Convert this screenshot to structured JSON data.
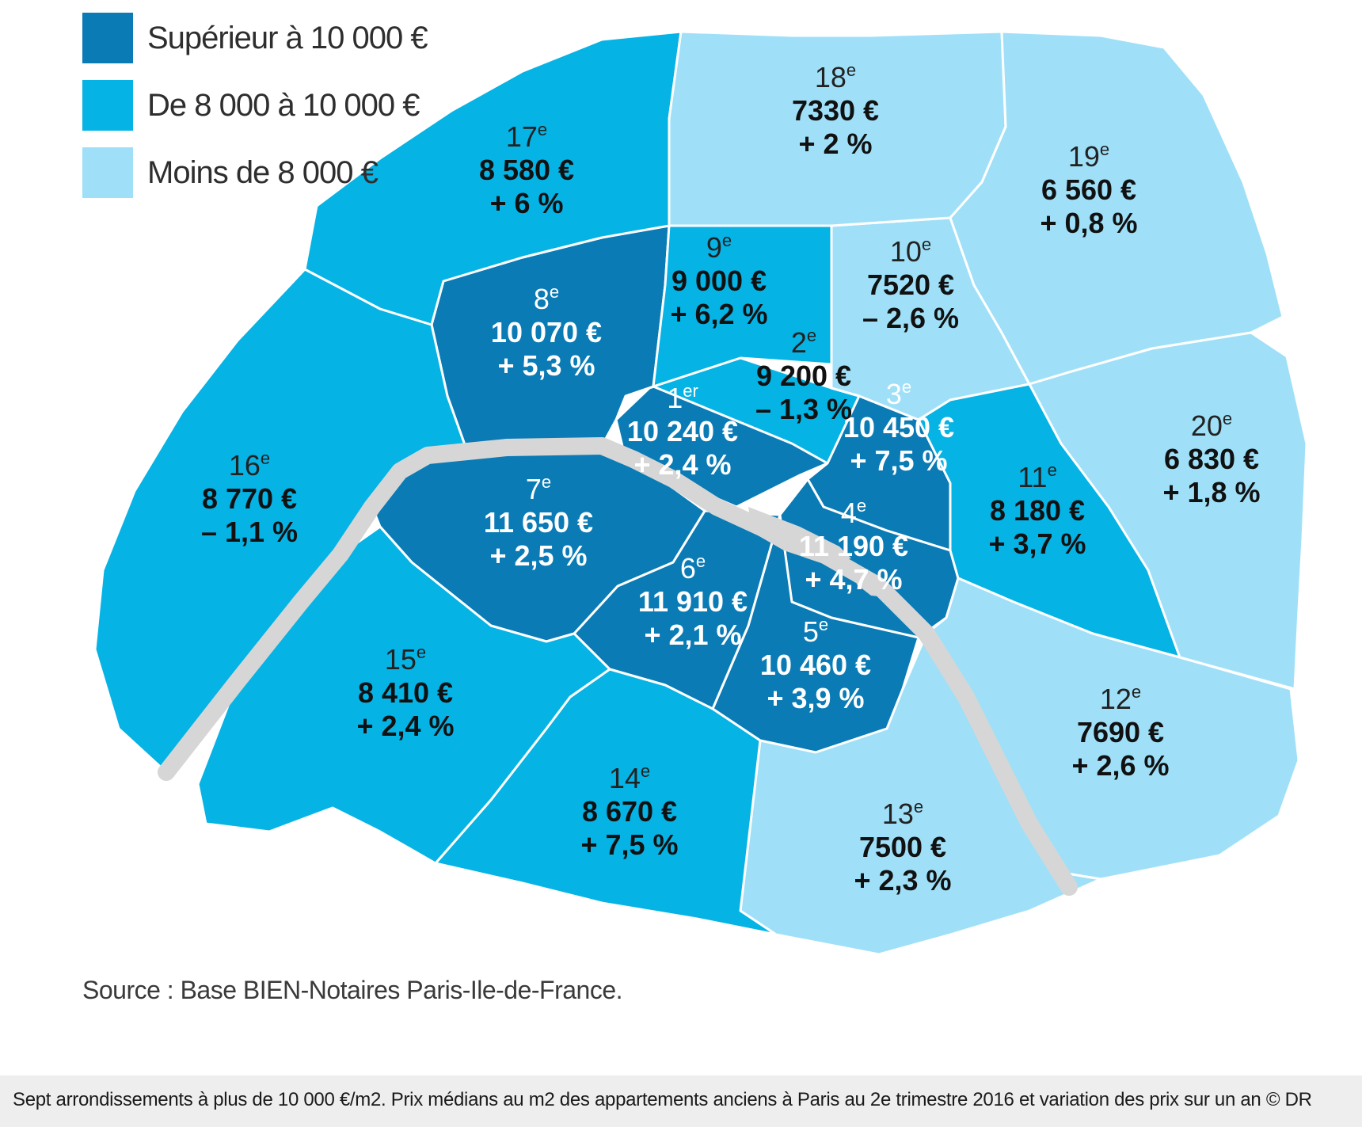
{
  "legend": {
    "items": [
      {
        "label": "Supérieur à 10 000 €",
        "color": "#0a7bb5"
      },
      {
        "label": "De 8 000 à 10 000 €",
        "color": "#05b3e5"
      },
      {
        "label": "Moins de 8 000 €",
        "color": "#9fe0f8"
      }
    ]
  },
  "arrondissements": [
    {
      "num": "1",
      "sup": "er",
      "price": "10 240 €",
      "change": "+ 2,4 %",
      "tier": 0
    },
    {
      "num": "2",
      "sup": "e",
      "price": "9 200 €",
      "change": "– 1,3 %",
      "tier": 1
    },
    {
      "num": "3",
      "sup": "e",
      "price": "10 450 €",
      "change": "+ 7,5 %",
      "tier": 0
    },
    {
      "num": "4",
      "sup": "e",
      "price": "11 190 €",
      "change": "+ 4,7 %",
      "tier": 0
    },
    {
      "num": "5",
      "sup": "e",
      "price": "10 460 €",
      "change": "+ 3,9 %",
      "tier": 0
    },
    {
      "num": "6",
      "sup": "e",
      "price": "11 910 €",
      "change": "+ 2,1 %",
      "tier": 0
    },
    {
      "num": "7",
      "sup": "e",
      "price": "11 650 €",
      "change": "+ 2,5 %",
      "tier": 0
    },
    {
      "num": "8",
      "sup": "e",
      "price": "10 070 €",
      "change": "+ 5,3 %",
      "tier": 0
    },
    {
      "num": "9",
      "sup": "e",
      "price": "9 000 €",
      "change": "+ 6,2 %",
      "tier": 1
    },
    {
      "num": "10",
      "sup": "e",
      "price": "7520 €",
      "change": "– 2,6 %",
      "tier": 2
    },
    {
      "num": "11",
      "sup": "e",
      "price": "8 180 €",
      "change": "+ 3,7 %",
      "tier": 1
    },
    {
      "num": "12",
      "sup": "e",
      "price": "7690 €",
      "change": "+ 2,6 %",
      "tier": 2
    },
    {
      "num": "13",
      "sup": "e",
      "price": "7500 €",
      "change": "+ 2,3 %",
      "tier": 2
    },
    {
      "num": "14",
      "sup": "e",
      "price": "8 670 €",
      "change": "+ 7,5 %",
      "tier": 1
    },
    {
      "num": "15",
      "sup": "e",
      "price": "8 410 €",
      "change": "+ 2,4 %",
      "tier": 1
    },
    {
      "num": "16",
      "sup": "e",
      "price": "8 770 €",
      "change": "– 1,1 %",
      "tier": 1
    },
    {
      "num": "17",
      "sup": "e",
      "price": "8 580 €",
      "change": "+ 6 %",
      "tier": 1
    },
    {
      "num": "18",
      "sup": "e",
      "price": "7330 €",
      "change": "+ 2 %",
      "tier": 2
    },
    {
      "num": "19",
      "sup": "e",
      "price": "6 560 €",
      "change": "+ 0,8 %",
      "tier": 2
    },
    {
      "num": "20",
      "sup": "e",
      "price": "6 830 €",
      "change": "+ 1,8 %",
      "tier": 2
    }
  ],
  "source": "Source : Base BIEN-Notaires Paris-Ile-de-France.",
  "caption": "Sept arrondissements à plus de 10 000 €/m2. Prix médians au m2 des appartements anciens à Paris au 2e trimestre 2016 et variation des prix sur un an © DR",
  "colors": {
    "river": "#d6d6d6",
    "label_dark_text": "#111111",
    "label_light_text": "#ffffff"
  }
}
